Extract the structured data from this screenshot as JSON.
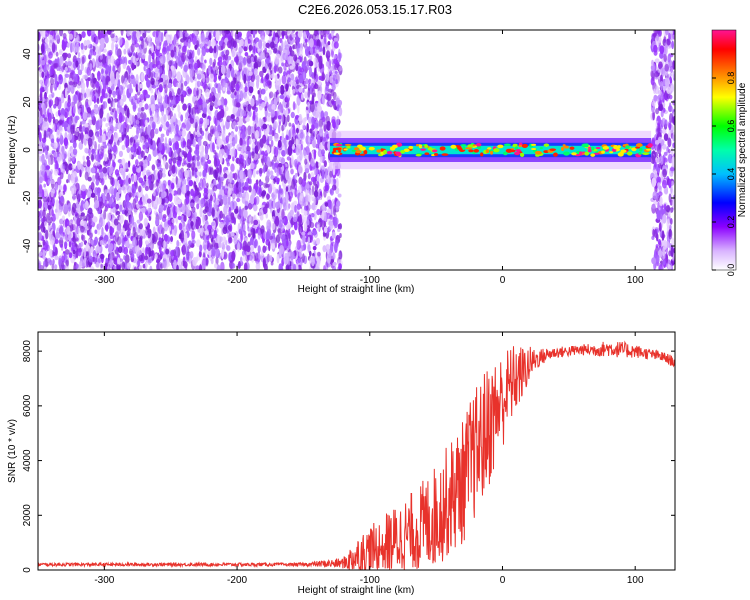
{
  "title": "C2E6.2026.053.15.17.R03",
  "colors": {
    "snr_line": "#e8322b",
    "background": "#ffffff",
    "spectrum_noise": "#8a2be2"
  },
  "chart_data": [
    {
      "type": "heatmap",
      "title": "C2E6.2026.053.15.17.R03",
      "xlabel": "Height of straight line (km)",
      "ylabel": "Frequency (Hz)",
      "xlim": [
        -350,
        130
      ],
      "ylim": [
        -50,
        50
      ],
      "x_ticks": [
        "-300",
        "-200",
        "-100",
        "0",
        "100"
      ],
      "y_ticks": [
        "-40",
        "-20",
        "0",
        "20",
        "40"
      ],
      "colorbar": {
        "label": "Normalized spectral amplitude",
        "range": [
          0.0,
          1.0
        ],
        "ticks": [
          "0.0",
          "0.2",
          "0.4",
          "0.6",
          "0.8"
        ],
        "colormap": [
          "#ffffff",
          "#d9b3ff",
          "#8b00ff",
          "#0000ff",
          "#00ffff",
          "#00ff00",
          "#ffff00",
          "#ff7f00",
          "#ff0000",
          "#ff1493"
        ]
      },
      "regions": [
        {
          "x_range": [
            -350,
            -122
          ],
          "description_values": "broadband noise, amplitude 0.0-0.15"
        },
        {
          "x_range": [
            -130,
            112
          ],
          "center_freq_hz": 0,
          "band_half_width_hz": 5,
          "amplitude_range": [
            0.3,
            0.9
          ]
        },
        {
          "x_range": [
            113,
            130
          ],
          "description_values": "broadband noise, amplitude 0.0-0.15"
        }
      ]
    },
    {
      "type": "line",
      "xlabel": "Height of straight line (km)",
      "ylabel": "SNR (10 * v/v)",
      "xlim": [
        -350,
        130
      ],
      "ylim": [
        0,
        8700
      ],
      "x_ticks": [
        "-300",
        "-200",
        "-100",
        "0",
        "100"
      ],
      "y_ticks": [
        "0",
        "2000",
        "4000",
        "6000",
        "8000"
      ],
      "series": [
        {
          "x": [
            -350,
            -300,
            -250,
            -200,
            -150,
            -120,
            -110,
            -100,
            -90,
            -80,
            -70,
            -60,
            -50,
            -40,
            -30,
            -25,
            -20,
            -15,
            -10,
            -5,
            0,
            5,
            10,
            15,
            20,
            25,
            30,
            35,
            40,
            50,
            60,
            70,
            80,
            90,
            100,
            110,
            120,
            130
          ],
          "y": [
            200,
            200,
            200,
            200,
            200,
            250,
            500,
            700,
            900,
            1100,
            1300,
            1600,
            2000,
            2600,
            3200,
            3800,
            4300,
            4800,
            5300,
            5800,
            6200,
            6700,
            7000,
            7200,
            7500,
            7700,
            7800,
            7900,
            7950,
            8000,
            8050,
            8050,
            8100,
            8050,
            8000,
            7900,
            7800,
            7600
          ],
          "noise_amplitude": [
            60,
            60,
            60,
            60,
            60,
            200,
            700,
            900,
            1100,
            1300,
            1500,
            1700,
            1900,
            2100,
            2300,
            2400,
            2400,
            2400,
            2300,
            2000,
            1800,
            1500,
            1300,
            1000,
            700,
            400,
            300,
            250,
            200,
            200,
            200,
            250,
            300,
            300,
            250,
            200,
            200,
            200
          ]
        }
      ]
    }
  ]
}
